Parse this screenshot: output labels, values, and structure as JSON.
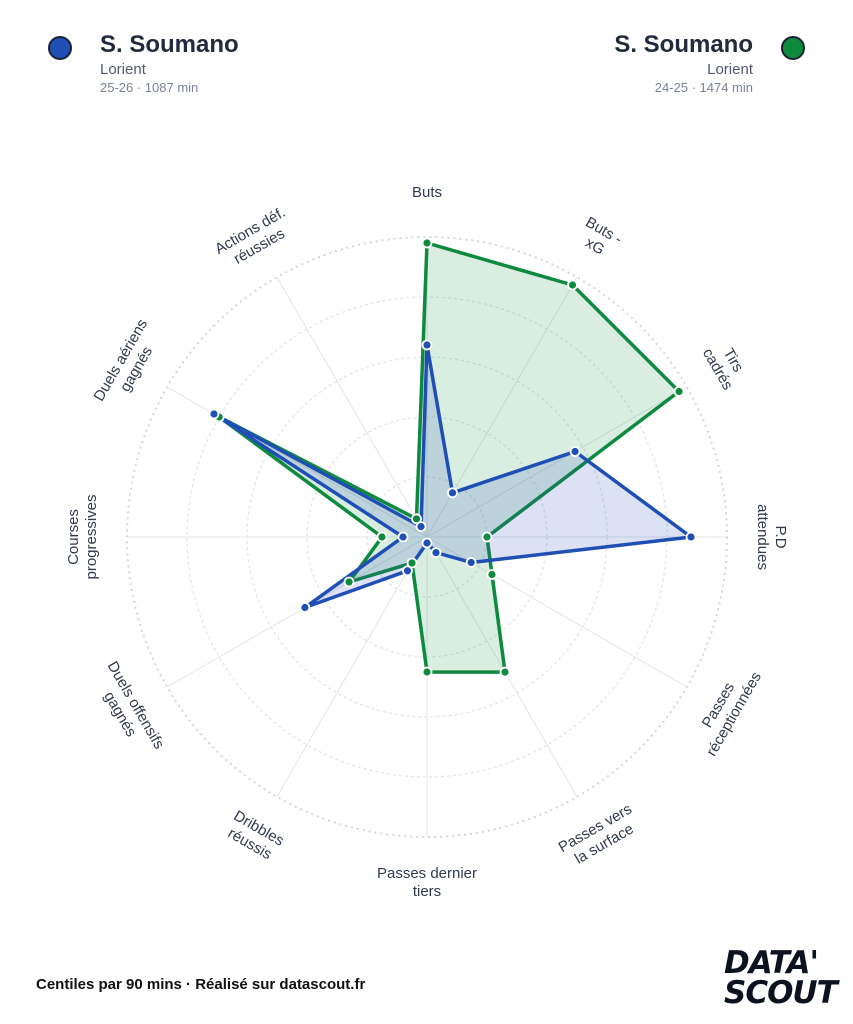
{
  "players": [
    {
      "name": "S. Soumano",
      "club": "Lorient",
      "meta": "25-26 · 1087 min",
      "color": "#1f4fb5"
    },
    {
      "name": "S. Soumano",
      "club": "Lorient",
      "meta": "24-25 · 1474 min",
      "color": "#0e8a3e"
    }
  ],
  "footer": "Centiles par 90 mins · Réalisé sur datascout.fr",
  "logo": {
    "line1": "DATA'",
    "line2": "SCOUT"
  },
  "chart_data": {
    "type": "radar",
    "scale": [
      0,
      100
    ],
    "axes": [
      "Buts",
      "Buts - xG",
      "Tirs cadrés",
      "P.D attendues",
      "Passes réceptionnées",
      "Passes vers la surface",
      "Passes dernier tiers",
      "Dribbles réussis",
      "Duels offensifs gagnés",
      "Courses progressives",
      "Duels aériens gagnés",
      "Actions déf. réussies"
    ],
    "series": [
      {
        "name": "S. Soumano 25-26",
        "color": "#1f4fb5",
        "fill": "rgba(45,80,190,0.17)",
        "values": [
          64,
          17,
          57,
          88,
          17,
          6,
          2,
          13,
          47,
          8,
          82,
          4
        ]
      },
      {
        "name": "S. Soumano 24-25",
        "color": "#0e8a3e",
        "fill": "rgba(20,150,70,0.16)",
        "values": [
          98,
          97,
          97,
          20,
          25,
          52,
          45,
          10,
          30,
          15,
          80,
          7
        ]
      }
    ],
    "grid": true
  }
}
